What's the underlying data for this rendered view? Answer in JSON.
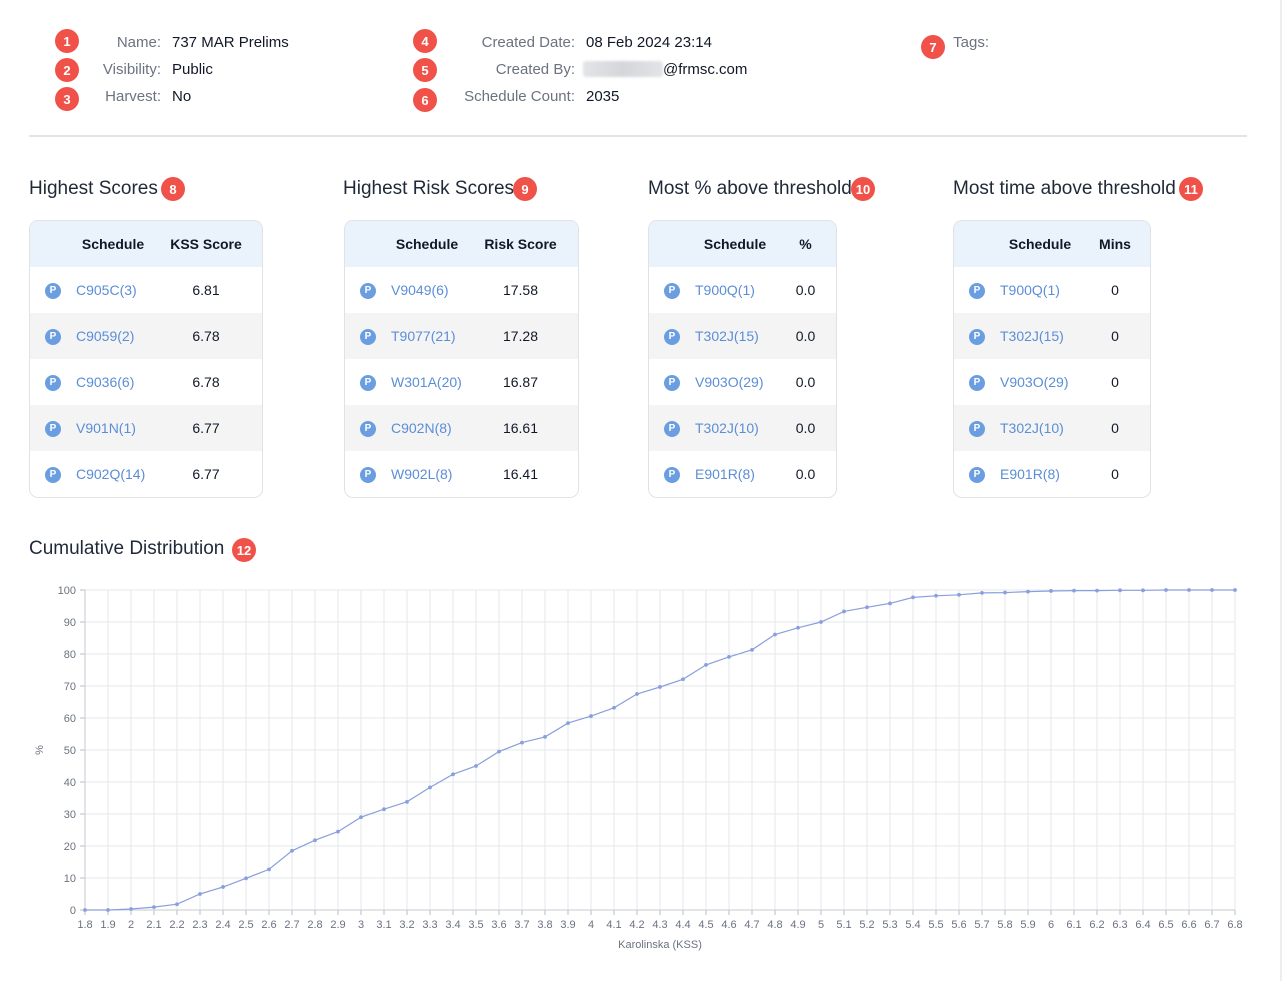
{
  "meta": {
    "name_label": "Name:",
    "name_value": "737 MAR Prelims",
    "visibility_label": "Visibility:",
    "visibility_value": "Public",
    "harvest_label": "Harvest:",
    "harvest_value": "No",
    "created_date_label": "Created Date:",
    "created_date_value": "08 Feb 2024 23:14",
    "created_by_label": "Created By:",
    "created_by_value": "@frmsc.com",
    "schedule_count_label": "Schedule Count:",
    "schedule_count_value": "2035",
    "tags_label": "Tags:"
  },
  "markers": [
    "1",
    "2",
    "3",
    "4",
    "5",
    "6",
    "7",
    "8",
    "9",
    "10",
    "11",
    "12"
  ],
  "tables": {
    "highest_scores": {
      "title": "Highest Scores",
      "col1": "Schedule",
      "col2": "KSS Score",
      "rows": [
        {
          "badge": "P",
          "schedule": "C905C(3)",
          "value": "6.81"
        },
        {
          "badge": "P",
          "schedule": "C9059(2)",
          "value": "6.78"
        },
        {
          "badge": "P",
          "schedule": "C9036(6)",
          "value": "6.78"
        },
        {
          "badge": "P",
          "schedule": "V901N(1)",
          "value": "6.77"
        },
        {
          "badge": "P",
          "schedule": "C902Q(14)",
          "value": "6.77"
        }
      ]
    },
    "highest_risk": {
      "title": "Highest Risk Scores",
      "col1": "Schedule",
      "col2": "Risk Score",
      "rows": [
        {
          "badge": "P",
          "schedule": "V9049(6)",
          "value": "17.58"
        },
        {
          "badge": "P",
          "schedule": "T9077(21)",
          "value": "17.28"
        },
        {
          "badge": "P",
          "schedule": "W301A(20)",
          "value": "16.87"
        },
        {
          "badge": "P",
          "schedule": "C902N(8)",
          "value": "16.61"
        },
        {
          "badge": "P",
          "schedule": "W902L(8)",
          "value": "16.41"
        }
      ]
    },
    "most_pct": {
      "title": "Most % above threshold",
      "col1": "Schedule",
      "col2": "%",
      "rows": [
        {
          "badge": "P",
          "schedule": "T900Q(1)",
          "value": "0.0"
        },
        {
          "badge": "P",
          "schedule": "T302J(15)",
          "value": "0.0"
        },
        {
          "badge": "P",
          "schedule": "V903O(29)",
          "value": "0.0"
        },
        {
          "badge": "P",
          "schedule": "T302J(10)",
          "value": "0.0"
        },
        {
          "badge": "P",
          "schedule": "E901R(8)",
          "value": "0.0"
        }
      ]
    },
    "most_time": {
      "title": "Most time above threshold",
      "col1": "Schedule",
      "col2": "Mins",
      "rows": [
        {
          "badge": "P",
          "schedule": "T900Q(1)",
          "value": "0"
        },
        {
          "badge": "P",
          "schedule": "T302J(15)",
          "value": "0"
        },
        {
          "badge": "P",
          "schedule": "V903O(29)",
          "value": "0"
        },
        {
          "badge": "P",
          "schedule": "T302J(10)",
          "value": "0"
        },
        {
          "badge": "P",
          "schedule": "E901R(8)",
          "value": "0"
        }
      ]
    }
  },
  "distribution": {
    "title": "Cumulative Distribution"
  },
  "colors": {
    "marker": "#f0524a",
    "link": "#5b8ed6",
    "badge": "#6a9ee0",
    "header_bg": "#eaf2fc",
    "line": "#8aa0dc"
  },
  "chart_data": {
    "type": "line",
    "title": "",
    "xlabel": "Karolinska (KSS)",
    "ylabel": "%",
    "ylim": [
      0,
      100
    ],
    "yticks": [
      0,
      10,
      20,
      30,
      40,
      50,
      60,
      70,
      80,
      90,
      100
    ],
    "grid": true,
    "x": [
      "1.8",
      "1.9",
      "2",
      "2.1",
      "2.2",
      "2.3",
      "2.4",
      "2.5",
      "2.6",
      "2.7",
      "2.8",
      "2.9",
      "3",
      "3.1",
      "3.2",
      "3.3",
      "3.4",
      "3.5",
      "3.6",
      "3.7",
      "3.8",
      "3.9",
      "4",
      "4.1",
      "4.2",
      "4.3",
      "4.4",
      "4.5",
      "4.6",
      "4.7",
      "4.8",
      "4.9",
      "5",
      "5.1",
      "5.2",
      "5.3",
      "5.4",
      "5.5",
      "5.6",
      "5.7",
      "5.8",
      "5.9",
      "6",
      "6.1",
      "6.2",
      "6.3",
      "6.4",
      "6.5",
      "6.6",
      "6.7",
      "6.8"
    ],
    "series": [
      {
        "values": [
          0,
          0,
          0.3,
          0.9,
          1.8,
          5,
          7.2,
          9.9,
          12.7,
          18.5,
          21.8,
          24.5,
          29,
          31.5,
          33.8,
          38.3,
          42.4,
          45,
          49.5,
          52.3,
          54.1,
          58.4,
          60.6,
          63.2,
          67.5,
          69.7,
          72.1,
          76.6,
          79.1,
          81.3,
          86.1,
          88.2,
          90,
          93.3,
          94.6,
          95.8,
          97.7,
          98.2,
          98.5,
          99.1,
          99.2,
          99.5,
          99.7,
          99.8,
          99.8,
          99.9,
          99.9,
          100,
          100,
          100,
          100
        ]
      }
    ]
  }
}
